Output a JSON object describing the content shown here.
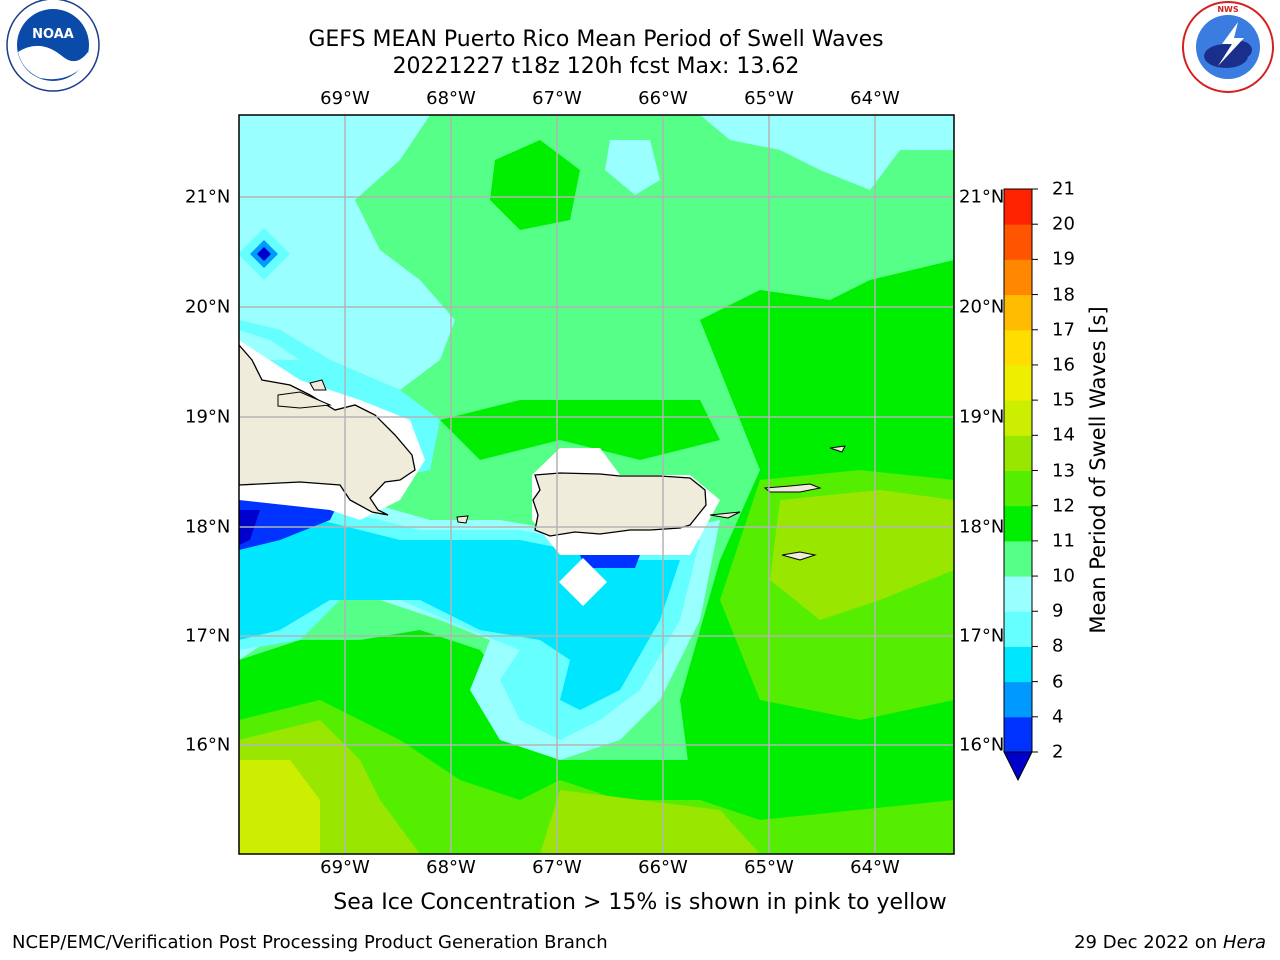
{
  "header": {
    "title_line1": "GEFS MEAN Puerto Rico Mean Period of Swell Waves",
    "title_line2": "20221227 t18z 120h fcst   Max: 13.62"
  },
  "logos": {
    "left": "NOAA",
    "left_ring_text": "NATIONAL OCEANIC AND ATMOSPHERIC ADMINISTRATION · U.S. DEPARTMENT OF COMMERCE",
    "right_ring_text": "NATIONAL WEATHER SERVICE"
  },
  "map": {
    "lon_labels": [
      "69°W",
      "68°W",
      "67°W",
      "66°W",
      "65°W",
      "64°W"
    ],
    "lat_labels": [
      "21°N",
      "20°N",
      "19°N",
      "18°N",
      "17°N",
      "16°N"
    ],
    "land_color": "#efecdc",
    "grid_color": "#b4b4b4"
  },
  "colorbar": {
    "label": "Mean Period of Swell Waves [s]",
    "ticks": [
      "2",
      "4",
      "6",
      "8",
      "9",
      "10",
      "11",
      "12",
      "13",
      "14",
      "15",
      "16",
      "17",
      "18",
      "19",
      "20",
      "21"
    ],
    "colors": [
      "#0033ff",
      "#0099ff",
      "#00e6ff",
      "#66ffff",
      "#99ffff",
      "#55ff88",
      "#00ee00",
      "#55ee00",
      "#99e600",
      "#ccee00",
      "#eeee00",
      "#ffdd00",
      "#ffbb00",
      "#ff8800",
      "#ff5500",
      "#ff2200"
    ],
    "under_color": "#0000cc"
  },
  "note": "Sea Ice Concentration > 15% is shown in pink to yellow",
  "footer": {
    "left": "NCEP/EMC/Verification Post Processing Product Generation Branch",
    "right_date": "29 Dec 2022 on ",
    "right_machine": "Hera"
  }
}
